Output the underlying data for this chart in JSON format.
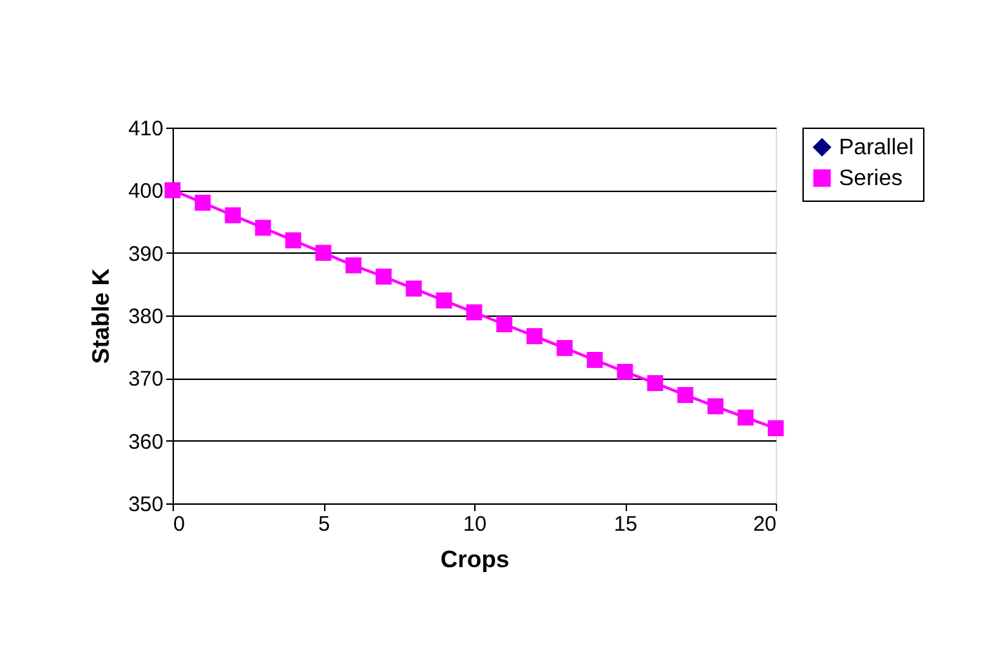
{
  "chart_data": {
    "type": "line",
    "xlabel": "Crops",
    "ylabel": "Stable K",
    "x": [
      0,
      1,
      2,
      3,
      4,
      5,
      6,
      7,
      8,
      9,
      10,
      11,
      12,
      13,
      14,
      15,
      16,
      17,
      18,
      19,
      20
    ],
    "series": [
      {
        "name": "Parallel",
        "color": "#000080",
        "marker": "diamond",
        "values": [
          null,
          null,
          null,
          null,
          null,
          null,
          null,
          null,
          null,
          null,
          null,
          null,
          null,
          null,
          null,
          null,
          null,
          null,
          null,
          null,
          null
        ]
      },
      {
        "name": "Series",
        "color": "#ff00ff",
        "marker": "square",
        "values": [
          400,
          398,
          396,
          394,
          392,
          390,
          388,
          386.2,
          384.3,
          382.4,
          380.5,
          378.6,
          376.7,
          374.8,
          372.9,
          371,
          369.2,
          367.3,
          365.5,
          363.7,
          362
        ]
      }
    ],
    "xlim": [
      0,
      20
    ],
    "xticks": [
      0,
      5,
      10,
      15,
      20
    ],
    "ylim": [
      350,
      410
    ],
    "yticks": [
      350,
      360,
      370,
      380,
      390,
      400,
      410
    ],
    "grid": "y",
    "legend": "right",
    "line_style": "solid"
  }
}
